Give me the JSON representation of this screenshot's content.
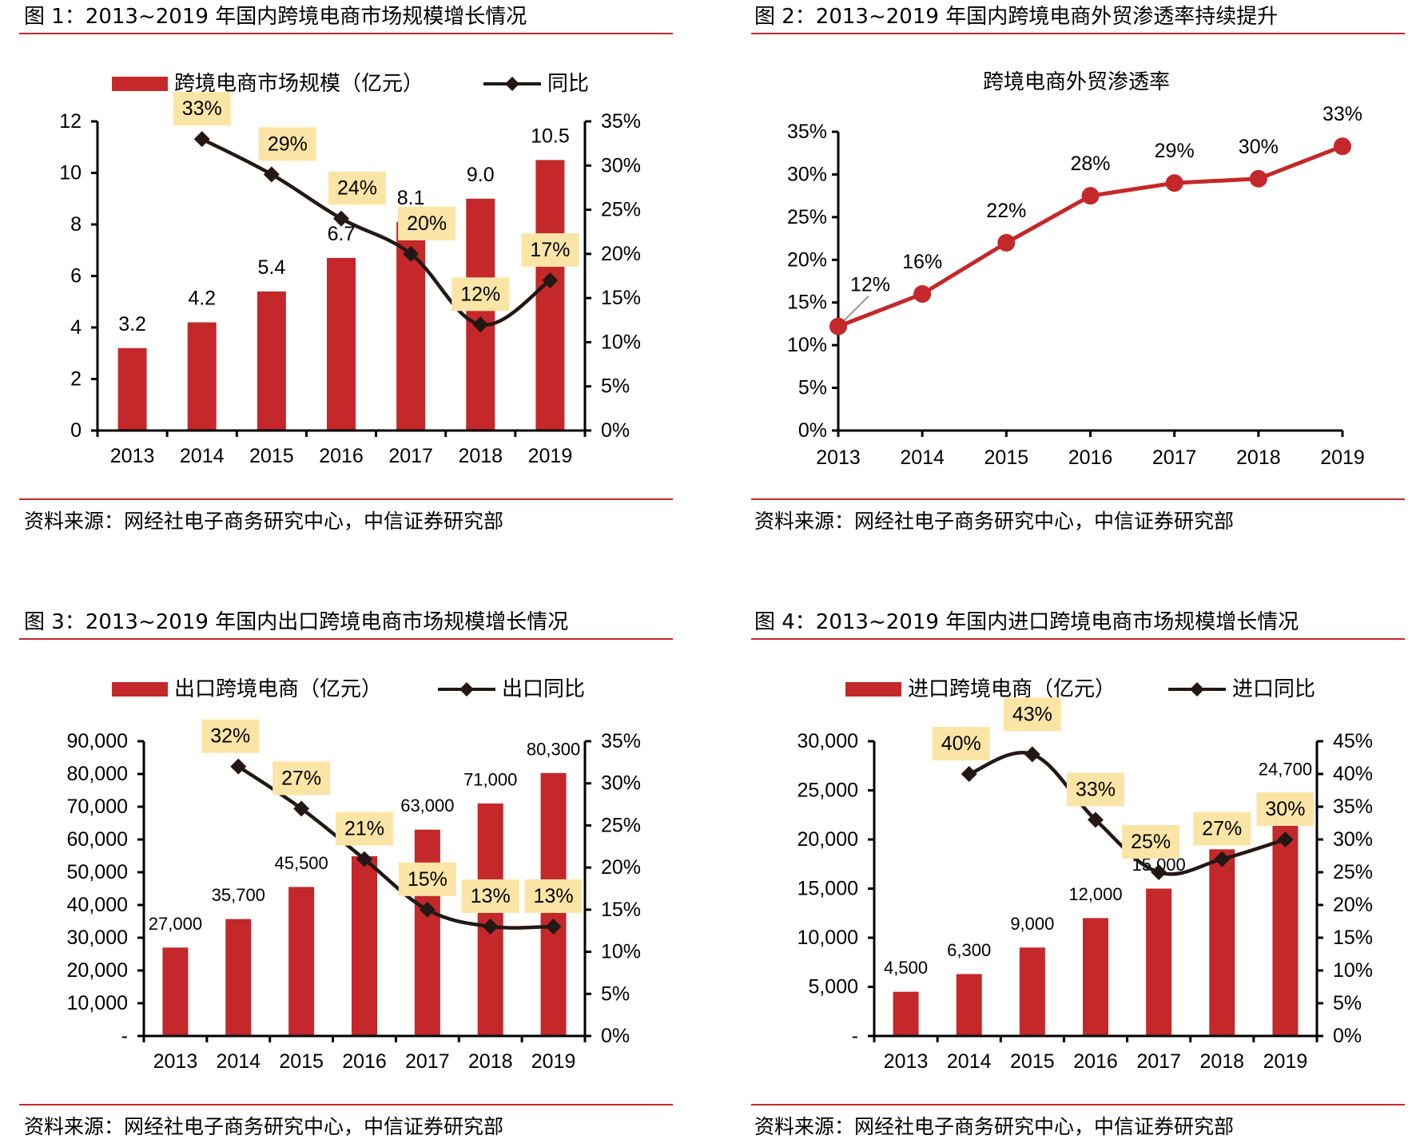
{
  "colors": {
    "bar": "#c4282a",
    "line": "#231815",
    "label_box": "#fbe5a6",
    "rule": "#c8282a",
    "penetration_line": "#c4282a",
    "leader": "#9a9a9a"
  },
  "figures": [
    {
      "title": "图 1：2013~2019 年国内跨境电商市场规模增长情况",
      "source": "资料来源：网经社电子商务研究中心，中信证券研究部"
    },
    {
      "title": "图 2：2013~2019 年国内跨境电商外贸渗透率持续提升",
      "source": "资料来源：网经社电子商务研究中心，中信证券研究部"
    },
    {
      "title": "图 3：2013~2019 年国内出口跨境电商市场规模增长情况",
      "source": "资料来源：网经社电子商务研究中心，中信证券研究部"
    },
    {
      "title": "图 4：2013~2019 年国内进口跨境电商市场规模增长情况",
      "source": "资料来源：网经社电子商务研究中心，中信证券研究部"
    }
  ],
  "chart_data": [
    {
      "type": "bar+line",
      "title": "2013~2019 年国内跨境电商市场规模增长情况",
      "categories": [
        "2013",
        "2014",
        "2015",
        "2016",
        "2017",
        "2018",
        "2019"
      ],
      "legend": {
        "bar": "跨境电商市场规模（亿元）",
        "line": "同比",
        "position": "top"
      },
      "series": [
        {
          "name": "跨境电商市场规模（亿元）",
          "axis": "left",
          "kind": "bar",
          "values": [
            3.2,
            4.2,
            5.4,
            6.7,
            8.1,
            9.0,
            10.5
          ],
          "labels": [
            "3.2",
            "4.2",
            "5.4",
            "6.7",
            "8.1",
            "9.0",
            "10.5"
          ]
        },
        {
          "name": "同比",
          "axis": "right",
          "kind": "line",
          "values": [
            null,
            33,
            29,
            24,
            20,
            12,
            17
          ],
          "labels": [
            null,
            "33%",
            "29%",
            "24%",
            "20%",
            "12%",
            "17%"
          ]
        }
      ],
      "y_left": {
        "range": [
          0,
          12
        ],
        "ticks": [
          "0",
          "2",
          "4",
          "6",
          "8",
          "10",
          "12"
        ]
      },
      "y_right": {
        "range": [
          0,
          35
        ],
        "ticks": [
          "0%",
          "5%",
          "10%",
          "15%",
          "20%",
          "25%",
          "30%",
          "35%"
        ]
      }
    },
    {
      "type": "line",
      "title": "跨境电商外贸渗透率",
      "categories": [
        "2013",
        "2014",
        "2015",
        "2016",
        "2017",
        "2018",
        "2019"
      ],
      "series": [
        {
          "name": "跨境电商外贸渗透率",
          "values": [
            12.2,
            16,
            22,
            27.5,
            29,
            29.5,
            33.3
          ],
          "labels": [
            "12%",
            "16%",
            "22%",
            "28%",
            "29%",
            "30%",
            "33%"
          ]
        }
      ],
      "y": {
        "range": [
          0,
          35
        ],
        "ticks": [
          "0%",
          "5%",
          "10%",
          "15%",
          "20%",
          "25%",
          "30%",
          "35%"
        ]
      }
    },
    {
      "type": "bar+line",
      "title": "2013~2019 年国内出口跨境电商市场规模增长情况",
      "categories": [
        "2013",
        "2014",
        "2015",
        "2016",
        "2017",
        "2018",
        "2019"
      ],
      "legend": {
        "bar": "出口跨境电商（亿元）",
        "line": "出口同比",
        "position": "top"
      },
      "series": [
        {
          "name": "出口跨境电商（亿元）",
          "axis": "left",
          "kind": "bar",
          "values": [
            27000,
            35700,
            45500,
            54900,
            63000,
            71000,
            80300
          ],
          "labels": [
            "27,000",
            "35,700",
            "45,500",
            "54,900",
            "63,000",
            "71,000",
            "80,300"
          ]
        },
        {
          "name": "出口同比",
          "axis": "right",
          "kind": "line",
          "values": [
            null,
            32,
            27,
            21,
            15,
            13,
            13
          ],
          "labels": [
            null,
            "32%",
            "27%",
            "21%",
            "15%",
            "13%",
            "13%"
          ]
        }
      ],
      "y_left": {
        "range": [
          0,
          90000
        ],
        "ticks": [
          "-",
          "10,000",
          "20,000",
          "30,000",
          "40,000",
          "50,000",
          "60,000",
          "70,000",
          "80,000",
          "90,000"
        ]
      },
      "y_right": {
        "range": [
          0,
          35
        ],
        "ticks": [
          "0%",
          "5%",
          "10%",
          "15%",
          "20%",
          "25%",
          "30%",
          "35%"
        ]
      }
    },
    {
      "type": "bar+line",
      "title": "2013~2019 年国内进口跨境电商市场规模增长情况",
      "categories": [
        "2013",
        "2014",
        "2015",
        "2016",
        "2017",
        "2018",
        "2019"
      ],
      "legend": {
        "bar": "进口跨境电商（亿元）",
        "line": "进口同比",
        "position": "top"
      },
      "series": [
        {
          "name": "进口跨境电商（亿元）",
          "axis": "left",
          "kind": "bar",
          "values": [
            4500,
            6300,
            9000,
            12000,
            15000,
            19000,
            24700
          ],
          "labels": [
            "4,500",
            "6,300",
            "9,000",
            "12,000",
            "15,000",
            "19,000",
            "24,700"
          ]
        },
        {
          "name": "进口同比",
          "axis": "right",
          "kind": "line",
          "values": [
            null,
            40,
            43,
            33,
            25,
            27,
            30
          ],
          "labels": [
            null,
            "40%",
            "43%",
            "33%",
            "25%",
            "27%",
            "30%"
          ]
        }
      ],
      "y_left": {
        "range": [
          0,
          30000
        ],
        "ticks": [
          "-",
          "5,000",
          "10,000",
          "15,000",
          "20,000",
          "25,000",
          "30,000"
        ]
      },
      "y_right": {
        "range": [
          0,
          45
        ],
        "ticks": [
          "0%",
          "5%",
          "10%",
          "15%",
          "20%",
          "25%",
          "30%",
          "35%",
          "40%",
          "45%"
        ]
      }
    }
  ]
}
